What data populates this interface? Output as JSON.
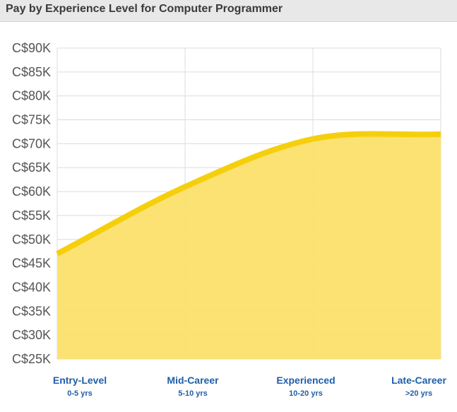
{
  "header": {
    "title": "Pay by Experience Level for Computer Programmer"
  },
  "colors": {
    "line": "#f5cf0c",
    "fill": "#fbe06c",
    "grid": "#dcdcdc",
    "axis_label": "#555555",
    "category_label": "#1f5ea8"
  },
  "chart_data": {
    "type": "area",
    "title": "Pay by Experience Level for Computer Programmer",
    "xlabel": "",
    "ylabel": "",
    "categories": [
      "Entry-Level",
      "Mid-Career",
      "Experienced",
      "Late-Career"
    ],
    "category_sublabels": [
      "0-5 yrs",
      "5-10 yrs",
      "10-20 yrs",
      ">20 yrs"
    ],
    "series": [
      {
        "values": [
          47000,
          61000,
          71000,
          72000
        ]
      }
    ],
    "y_ticks": [
      "C$25K",
      "C$30K",
      "C$35K",
      "C$40K",
      "C$45K",
      "C$50K",
      "C$55K",
      "C$60K",
      "C$65K",
      "C$70K",
      "C$75K",
      "C$80K",
      "C$85K",
      "C$90K"
    ],
    "ylim": [
      25000,
      90000
    ],
    "grid": true,
    "legend": "none"
  }
}
